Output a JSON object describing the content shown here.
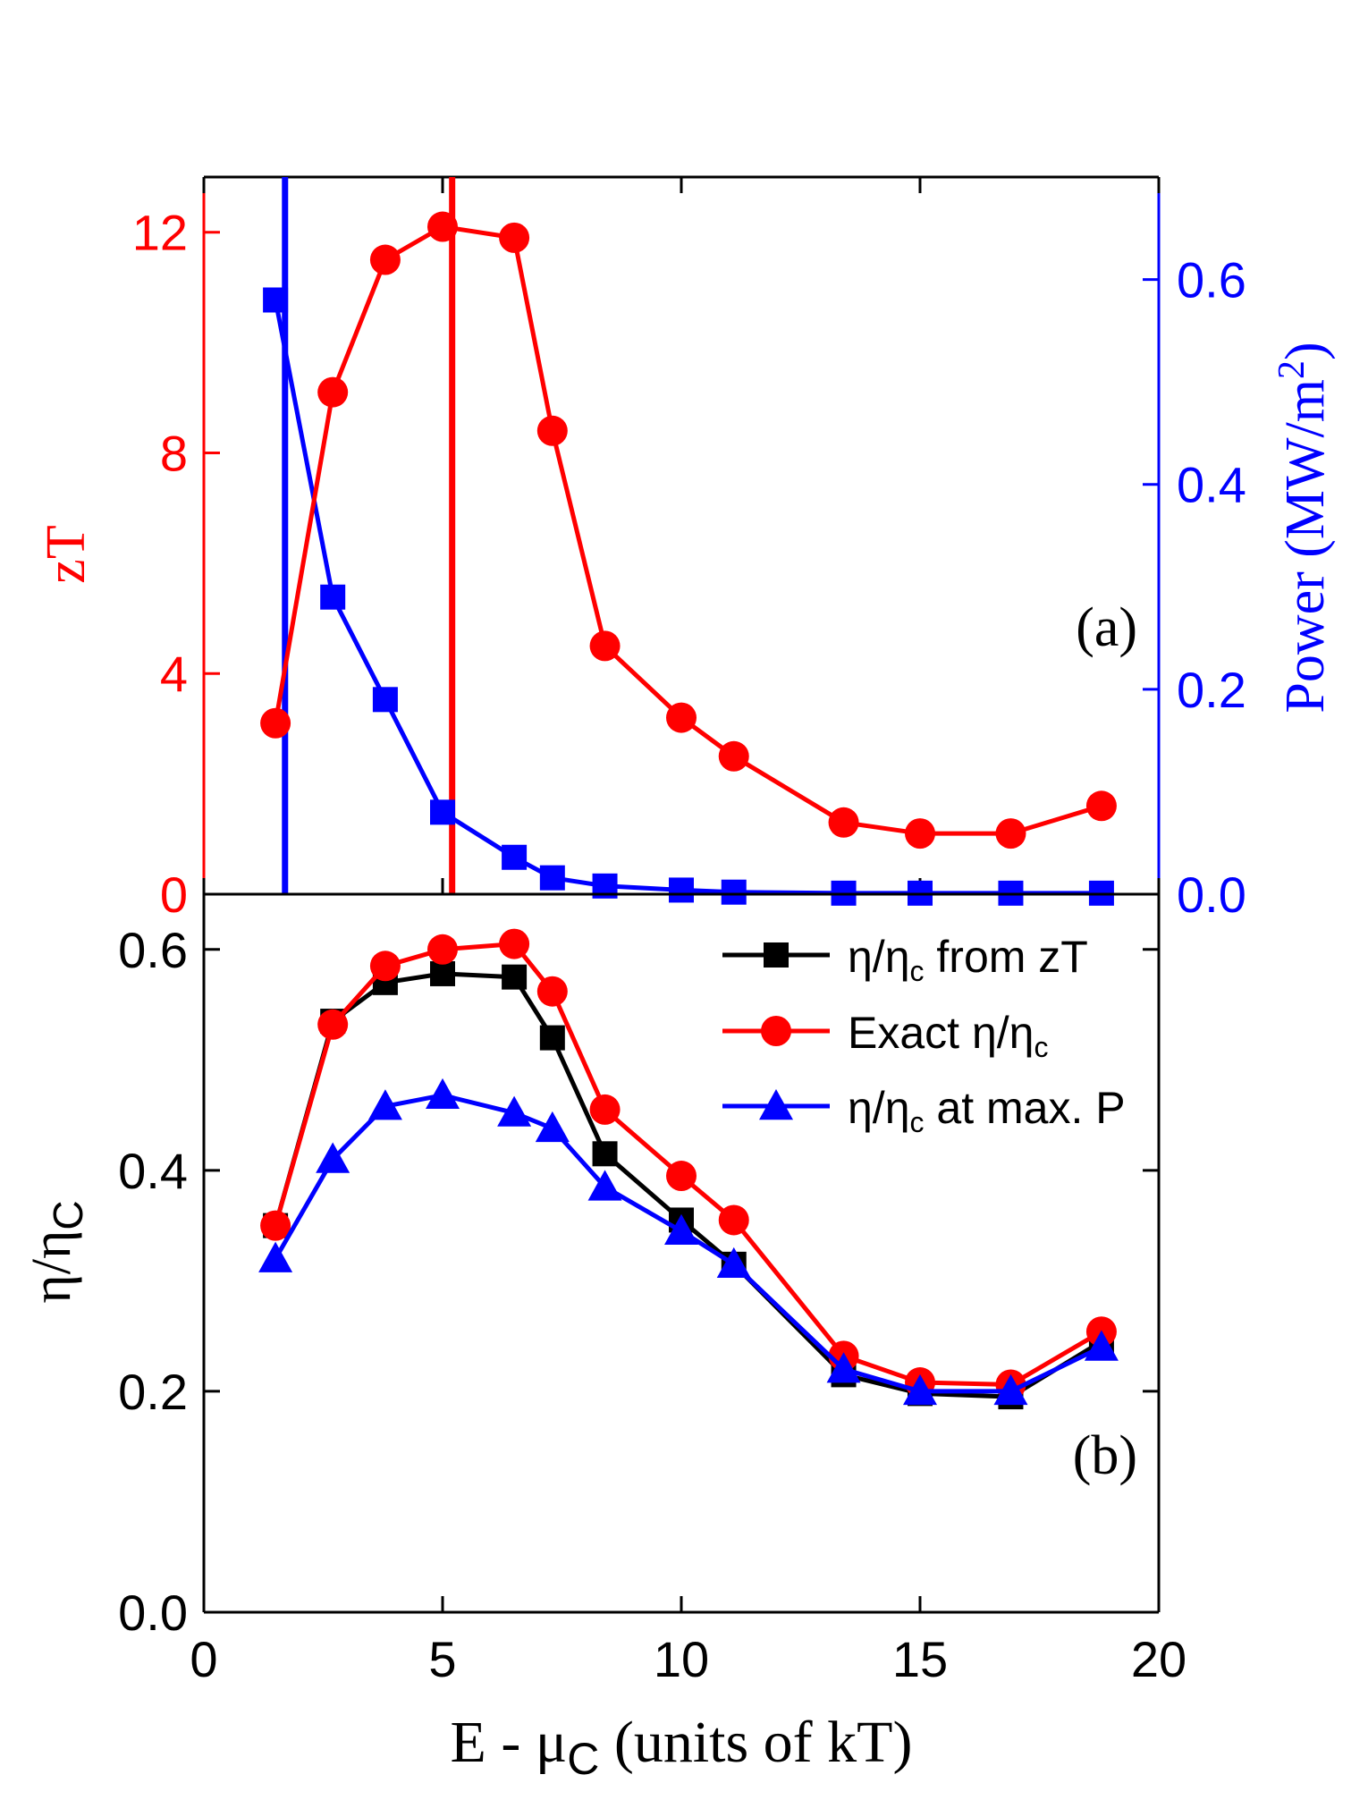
{
  "colors": {
    "zt": "#ff0000",
    "power": "#0000ff",
    "eta_zt": "#000000",
    "eta_exact": "#ff0000",
    "eta_maxp": "#0000ff",
    "axis": "#000000"
  },
  "chart_data": [
    {
      "type": "line",
      "panel_label": "(a)",
      "x_ticks": [
        "0",
        "5",
        "10",
        "15",
        "20"
      ],
      "xlim": [
        0,
        20
      ],
      "y_left": {
        "label": "zT",
        "ylim": [
          0,
          13
        ],
        "ticks": [
          "0",
          "4",
          "8",
          "12"
        ],
        "color": "#ff0000"
      },
      "y_right": {
        "label_main": "Power (MW/m",
        "label_sup": "2",
        "label_end": ")",
        "ylim": [
          0,
          0.7
        ],
        "ticks": [
          "0.0",
          "0.2",
          "0.4",
          "0.6"
        ],
        "color": "#0000ff"
      },
      "series": [
        {
          "axis": "left",
          "marker": "circle",
          "color": "#ff0000",
          "x": [
            1.5,
            2.7,
            3.8,
            5.0,
            6.5,
            7.3,
            8.4,
            10.0,
            11.1,
            13.4,
            15.0,
            16.9,
            18.8
          ],
          "y": [
            3.1,
            9.1,
            11.5,
            12.1,
            11.9,
            8.4,
            4.5,
            3.2,
            2.5,
            1.3,
            1.1,
            1.1,
            1.6
          ]
        },
        {
          "axis": "right",
          "marker": "square",
          "color": "#0000ff",
          "x": [
            1.5,
            2.7,
            3.8,
            5.0,
            6.5,
            7.3,
            8.4,
            10.0,
            11.1,
            13.4,
            15.0,
            16.9,
            18.8
          ],
          "y": [
            0.58,
            0.29,
            0.19,
            0.08,
            0.036,
            0.016,
            0.008,
            0.004,
            0.002,
            0.001,
            0.001,
            0.001,
            0.001
          ]
        }
      ],
      "vertical_lines": [
        {
          "x": 1.7,
          "color": "#0000ff"
        },
        {
          "x": 5.2,
          "color": "#ff0000"
        }
      ]
    },
    {
      "type": "line",
      "panel_label": "(b)",
      "xlabel_main": "E - μ",
      "xlabel_sub": "C",
      "xlabel_end": " (units of kT)",
      "x_ticks": [
        "0",
        "5",
        "10",
        "15",
        "20"
      ],
      "xlim": [
        0,
        20
      ],
      "ylabel_main": "η/η",
      "ylabel_sub": "C",
      "ylim": [
        0,
        0.65
      ],
      "y_ticks": [
        "0.0",
        "0.2",
        "0.4",
        "0.6"
      ],
      "legend_position": "top-right",
      "series": [
        {
          "name_main": "η/η",
          "name_sub": "c",
          "name_end": " from zT",
          "marker": "square",
          "color": "#000000",
          "x": [
            1.5,
            2.7,
            3.8,
            5.0,
            6.5,
            7.3,
            8.4,
            10.0,
            11.1,
            13.4,
            15.0,
            16.9,
            18.8
          ],
          "y": [
            0.35,
            0.535,
            0.57,
            0.578,
            0.575,
            0.52,
            0.415,
            0.355,
            0.315,
            0.215,
            0.198,
            0.195,
            0.245
          ]
        },
        {
          "name_main": "Exact η/η",
          "name_sub": "c",
          "name_end": "",
          "marker": "circle",
          "color": "#ff0000",
          "x": [
            1.5,
            2.7,
            3.8,
            5.0,
            6.5,
            7.3,
            8.4,
            10.0,
            11.1,
            13.4,
            15.0,
            16.9,
            18.8
          ],
          "y": [
            0.35,
            0.532,
            0.585,
            0.6,
            0.605,
            0.562,
            0.455,
            0.395,
            0.355,
            0.232,
            0.208,
            0.206,
            0.254
          ]
        },
        {
          "name_main": "η/η",
          "name_sub": "c",
          "name_end": " at max. P",
          "marker": "triangle",
          "color": "#0000ff",
          "x": [
            1.5,
            2.7,
            3.8,
            5.0,
            6.5,
            7.3,
            8.4,
            10.0,
            11.1,
            13.4,
            15.0,
            16.9,
            18.8
          ],
          "y": [
            0.32,
            0.41,
            0.458,
            0.468,
            0.452,
            0.438,
            0.385,
            0.345,
            0.315,
            0.22,
            0.2,
            0.2,
            0.24
          ]
        }
      ]
    }
  ]
}
